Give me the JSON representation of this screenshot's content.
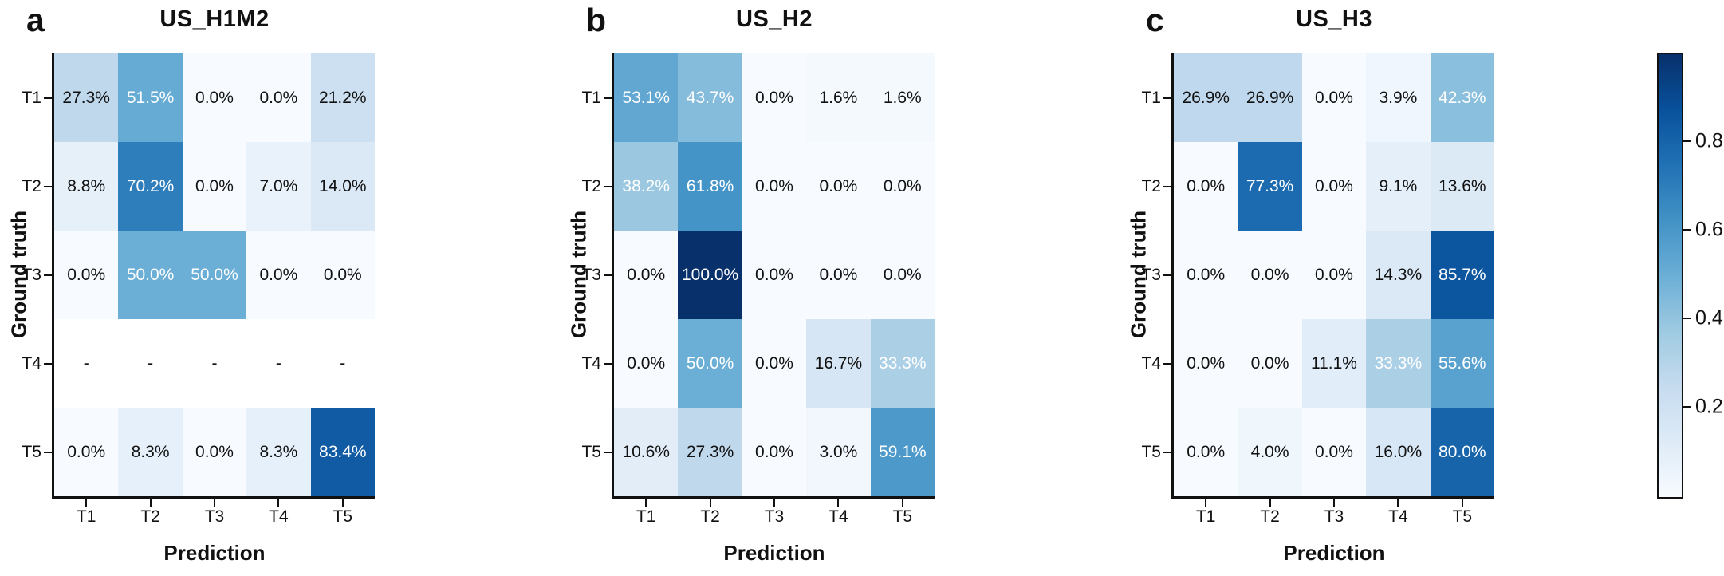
{
  "figure_background": "#ffffff",
  "colors": {
    "spine": "#111111",
    "cell_text_dark": "#111111",
    "cell_text_light": "#ffffff",
    "nan_cell_background": "#ffffff",
    "colormap_anchors": [
      "#f7fbff",
      "#deebf7",
      "#c6dbef",
      "#9ecae1",
      "#6baed6",
      "#4292c6",
      "#2171b5",
      "#08519c",
      "#08306b"
    ]
  },
  "colorbar": {
    "colormap": "Blues",
    "vmin": 0,
    "vmax": 1,
    "tick_values": [
      0.8,
      0.6,
      0.4,
      0.2
    ],
    "tick_labels": [
      "0.8",
      "0.6",
      "0.4",
      "0.2"
    ]
  },
  "chart_data": [
    {
      "type": "heatmap",
      "panel_letter": "a",
      "title": "US_H1M2",
      "xlabel": "Prediction",
      "ylabel": "Ground truth",
      "x_categories": [
        "T1",
        "T2",
        "T3",
        "T4",
        "T5"
      ],
      "y_categories": [
        "T1",
        "T2",
        "T3",
        "T4",
        "T5"
      ],
      "colormap": "Blues",
      "vmin": 0,
      "vmax": 1,
      "values": [
        [
          0.273,
          0.515,
          0.0,
          0.0,
          0.212
        ],
        [
          0.088,
          0.702,
          0.0,
          0.07,
          0.14
        ],
        [
          0.0,
          0.5,
          0.5,
          0.0,
          0.0
        ],
        [
          null,
          null,
          null,
          null,
          null
        ],
        [
          0.0,
          0.083,
          0.0,
          0.083,
          0.834
        ]
      ],
      "cell_labels": [
        [
          "27.3%",
          "51.5%",
          "0.0%",
          "0.0%",
          "21.2%"
        ],
        [
          "8.8%",
          "70.2%",
          "0.0%",
          "7.0%",
          "14.0%"
        ],
        [
          "0.0%",
          "50.0%",
          "50.0%",
          "0.0%",
          "0.0%"
        ],
        [
          "-",
          "-",
          "-",
          "-",
          "-"
        ],
        [
          "0.0%",
          "8.3%",
          "0.0%",
          "8.3%",
          "83.4%"
        ]
      ]
    },
    {
      "type": "heatmap",
      "panel_letter": "b",
      "title": "US_H2",
      "xlabel": "Prediction",
      "ylabel": "Ground truth",
      "x_categories": [
        "T1",
        "T2",
        "T3",
        "T4",
        "T5"
      ],
      "y_categories": [
        "T1",
        "T2",
        "T3",
        "T4",
        "T5"
      ],
      "colormap": "Blues",
      "vmin": 0,
      "vmax": 1,
      "values": [
        [
          0.531,
          0.437,
          0.0,
          0.016,
          0.016
        ],
        [
          0.382,
          0.618,
          0.0,
          0.0,
          0.0
        ],
        [
          0.0,
          1.0,
          0.0,
          0.0,
          0.0
        ],
        [
          0.0,
          0.5,
          0.0,
          0.167,
          0.333
        ],
        [
          0.106,
          0.273,
          0.0,
          0.03,
          0.591
        ]
      ],
      "cell_labels": [
        [
          "53.1%",
          "43.7%",
          "0.0%",
          "1.6%",
          "1.6%"
        ],
        [
          "38.2%",
          "61.8%",
          "0.0%",
          "0.0%",
          "0.0%"
        ],
        [
          "0.0%",
          "100.0%",
          "0.0%",
          "0.0%",
          "0.0%"
        ],
        [
          "0.0%",
          "50.0%",
          "0.0%",
          "16.7%",
          "33.3%"
        ],
        [
          "10.6%",
          "27.3%",
          "0.0%",
          "3.0%",
          "59.1%"
        ]
      ]
    },
    {
      "type": "heatmap",
      "panel_letter": "c",
      "title": "US_H3",
      "xlabel": "Prediction",
      "ylabel": "Ground truth",
      "x_categories": [
        "T1",
        "T2",
        "T3",
        "T4",
        "T5"
      ],
      "y_categories": [
        "T1",
        "T2",
        "T3",
        "T4",
        "T5"
      ],
      "colormap": "Blues",
      "vmin": 0,
      "vmax": 1,
      "values": [
        [
          0.269,
          0.269,
          0.0,
          0.039,
          0.423
        ],
        [
          0.0,
          0.773,
          0.0,
          0.091,
          0.136
        ],
        [
          0.0,
          0.0,
          0.0,
          0.143,
          0.857
        ],
        [
          0.0,
          0.0,
          0.111,
          0.333,
          0.556
        ],
        [
          0.0,
          0.04,
          0.0,
          0.16,
          0.8
        ]
      ],
      "cell_labels": [
        [
          "26.9%",
          "26.9%",
          "0.0%",
          "3.9%",
          "42.3%"
        ],
        [
          "0.0%",
          "77.3%",
          "0.0%",
          "9.1%",
          "13.6%"
        ],
        [
          "0.0%",
          "0.0%",
          "0.0%",
          "14.3%",
          "85.7%"
        ],
        [
          "0.0%",
          "0.0%",
          "11.1%",
          "33.3%",
          "55.6%"
        ],
        [
          "0.0%",
          "4.0%",
          "0.0%",
          "16.0%",
          "80.0%"
        ]
      ]
    }
  ]
}
